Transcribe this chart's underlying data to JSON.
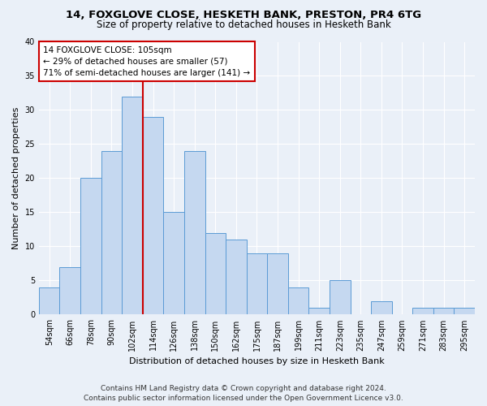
{
  "title_line1": "14, FOXGLOVE CLOSE, HESKETH BANK, PRESTON, PR4 6TG",
  "title_line2": "Size of property relative to detached houses in Hesketh Bank",
  "xlabel": "Distribution of detached houses by size in Hesketh Bank",
  "ylabel": "Number of detached properties",
  "categories": [
    "54sqm",
    "66sqm",
    "78sqm",
    "90sqm",
    "102sqm",
    "114sqm",
    "126sqm",
    "138sqm",
    "150sqm",
    "162sqm",
    "175sqm",
    "187sqm",
    "199sqm",
    "211sqm",
    "223sqm",
    "235sqm",
    "247sqm",
    "259sqm",
    "271sqm",
    "283sqm",
    "295sqm"
  ],
  "values": [
    4,
    7,
    20,
    24,
    32,
    29,
    15,
    24,
    12,
    11,
    9,
    9,
    4,
    1,
    5,
    0,
    2,
    0,
    1,
    1,
    1
  ],
  "bar_color": "#c5d8f0",
  "bar_edge_color": "#5b9bd5",
  "vline_index": 4,
  "vline_color": "#cc0000",
  "annotation_text": "14 FOXGLOVE CLOSE: 105sqm\n← 29% of detached houses are smaller (57)\n71% of semi-detached houses are larger (141) →",
  "annotation_box_color": "#ffffff",
  "annotation_box_edge": "#cc0000",
  "ylim": [
    0,
    40
  ],
  "yticks": [
    0,
    5,
    10,
    15,
    20,
    25,
    30,
    35,
    40
  ],
  "footer_line1": "Contains HM Land Registry data © Crown copyright and database right 2024.",
  "footer_line2": "Contains public sector information licensed under the Open Government Licence v3.0.",
  "bg_color": "#eaf0f8",
  "plot_bg_color": "#eaf0f8",
  "grid_color": "#ffffff",
  "title_fontsize": 9.5,
  "subtitle_fontsize": 8.5,
  "axis_label_fontsize": 8,
  "tick_fontsize": 7,
  "annotation_fontsize": 7.5,
  "footer_fontsize": 6.5,
  "bar_width": 1.0
}
